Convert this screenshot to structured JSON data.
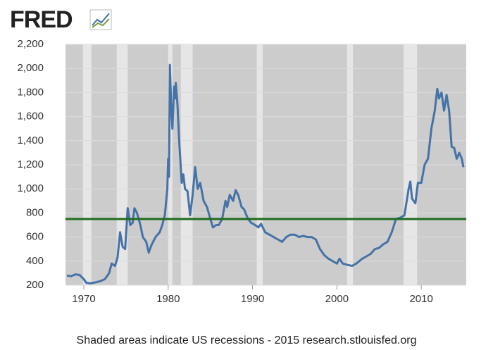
{
  "logo": "FRED",
  "chart_data": {
    "type": "line",
    "footnote": "Shaded areas indicate US recessions - 2015 research.stlouisfed.org",
    "x": [
      1968.0,
      1968.5,
      1969.0,
      1969.5,
      1970.0,
      1970.3,
      1970.8,
      1971.5,
      1972.0,
      1972.5,
      1973.0,
      1973.3,
      1973.7,
      1974.0,
      1974.3,
      1974.6,
      1974.9,
      1975.2,
      1975.5,
      1975.8,
      1976.0,
      1976.3,
      1976.7,
      1977.0,
      1977.4,
      1977.7,
      1978.0,
      1978.5,
      1979.0,
      1979.3,
      1979.6,
      1979.9,
      1980.0,
      1980.1,
      1980.2,
      1980.35,
      1980.5,
      1980.7,
      1980.8,
      1980.9,
      1981.1,
      1981.3,
      1981.6,
      1981.8,
      1982.0,
      1982.3,
      1982.6,
      1982.9,
      1983.2,
      1983.5,
      1983.8,
      1984.2,
      1984.6,
      1985.0,
      1985.3,
      1985.7,
      1986.0,
      1986.4,
      1986.8,
      1987.0,
      1987.3,
      1987.7,
      1988.0,
      1988.3,
      1988.7,
      1989.0,
      1989.4,
      1989.8,
      1990.3,
      1990.7,
      1991.0,
      1991.5,
      1992.0,
      1992.5,
      1993.0,
      1993.5,
      1994.0,
      1994.5,
      1995.0,
      1995.5,
      1996.0,
      1996.5,
      1997.0,
      1997.5,
      1998.0,
      1998.5,
      1999.0,
      1999.5,
      2000.0,
      2000.3,
      2000.7,
      2001.2,
      2001.8,
      2002.3,
      2003.0,
      2003.5,
      2004.0,
      2004.5,
      2005.0,
      2005.5,
      2006.0,
      2006.5,
      2007.0,
      2007.5,
      2008.0,
      2008.5,
      2008.7,
      2008.9,
      2009.3,
      2009.6,
      2010.0,
      2010.4,
      2010.8,
      2011.2,
      2011.6,
      2011.9,
      2012.1,
      2012.4,
      2012.7,
      2013.0,
      2013.3,
      2013.6,
      2013.9,
      2014.2,
      2014.5,
      2014.8,
      2015.0
    ],
    "series": [
      {
        "color": "#4572a7",
        "values": [
          280,
          275,
          290,
          285,
          250,
          220,
          215,
          225,
          235,
          250,
          300,
          380,
          360,
          430,
          640,
          520,
          500,
          840,
          700,
          720,
          840,
          800,
          700,
          600,
          560,
          470,
          530,
          600,
          640,
          700,
          780,
          1000,
          1250,
          1100,
          2030,
          1700,
          1500,
          1850,
          1750,
          1880,
          1700,
          1400,
          1050,
          1120,
          1000,
          980,
          780,
          950,
          1180,
          1000,
          1050,
          900,
          850,
          750,
          680,
          700,
          700,
          750,
          900,
          850,
          950,
          900,
          990,
          950,
          850,
          830,
          760,
          720,
          700,
          680,
          710,
          640,
          620,
          600,
          580,
          560,
          600,
          620,
          620,
          600,
          610,
          600,
          600,
          580,
          500,
          450,
          420,
          400,
          380,
          420,
          380,
          370,
          360,
          380,
          420,
          440,
          460,
          500,
          510,
          540,
          560,
          640,
          750,
          760,
          780,
          1000,
          1060,
          920,
          880,
          1050,
          1050,
          1200,
          1250,
          1500,
          1650,
          1830,
          1750,
          1800,
          1650,
          1780,
          1650,
          1350,
          1340,
          1250,
          1300,
          1250,
          1180
        ]
      }
    ],
    "reference_line": {
      "value": 750,
      "color": "#1e6b1e"
    },
    "recessions": [
      [
        1969.9,
        1970.9
      ],
      [
        1973.9,
        1975.2
      ],
      [
        1980.0,
        1980.5
      ],
      [
        1981.5,
        1982.9
      ],
      [
        1990.5,
        1991.2
      ],
      [
        2001.2,
        2001.9
      ],
      [
        2007.9,
        2009.5
      ]
    ],
    "xlim": [
      1967.83,
      2015.33
    ],
    "ylim": [
      200,
      2200
    ],
    "xticks": [
      1970,
      1980,
      1990,
      2000,
      2010
    ],
    "yticks": [
      200,
      400,
      600,
      800,
      {
        "value": 1000,
        "label": "1,000"
      },
      {
        "value": 1200,
        "label": "1,200"
      },
      {
        "value": 1400,
        "label": "1,400"
      },
      {
        "value": 1600,
        "label": "1,600"
      },
      {
        "value": 1800,
        "label": "1,800"
      },
      {
        "value": 2000,
        "label": "2,000"
      },
      {
        "value": 2200,
        "label": "2,200"
      }
    ],
    "grid": true
  }
}
